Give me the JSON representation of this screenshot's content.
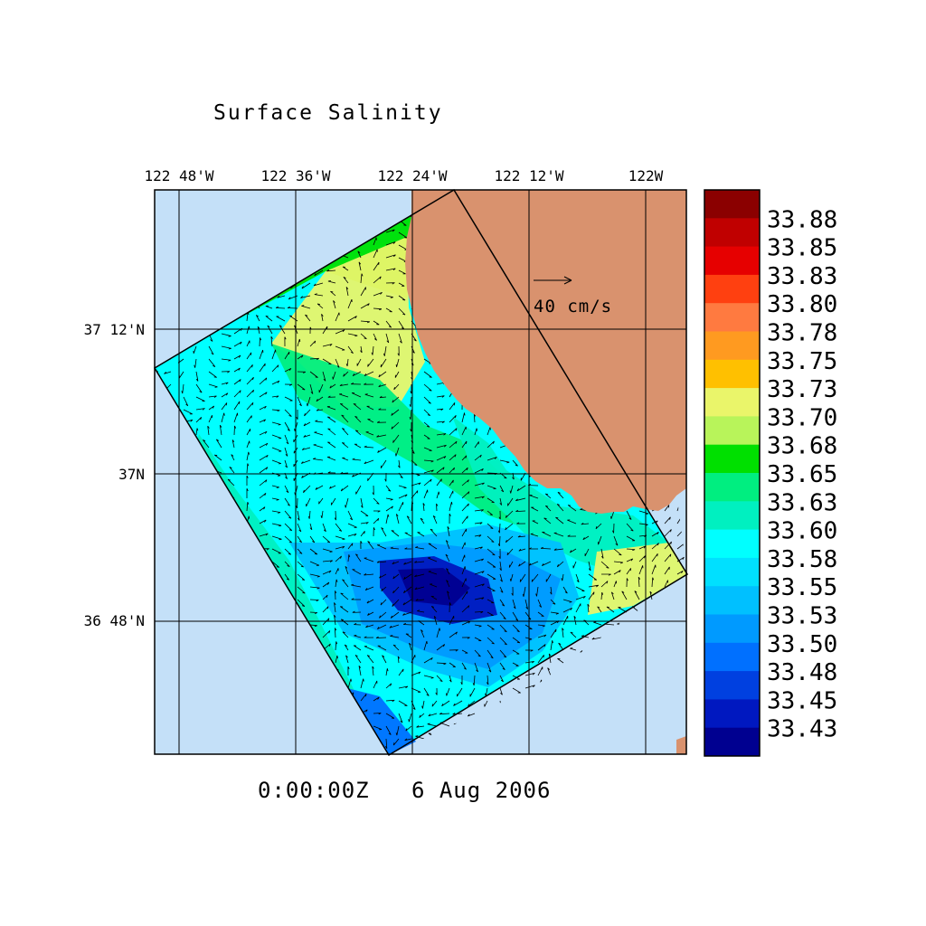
{
  "title": "Surface Salinity",
  "timestamp": "0:00:00Z   6 Aug 2006",
  "lon_labels": [
    "122 48'W",
    "122 36'W",
    "122 24'W",
    "122 12'W",
    "122W"
  ],
  "lat_labels": [
    "37 12'N",
    "37N",
    "36 48'N"
  ],
  "vector_reference": "40 cm/s",
  "colorbar": {
    "labels": [
      "33.88",
      "33.85",
      "33.83",
      "33.80",
      "33.78",
      "33.75",
      "33.73",
      "33.70",
      "33.68",
      "33.65",
      "33.63",
      "33.60",
      "33.58",
      "33.55",
      "33.53",
      "33.50",
      "33.48",
      "33.45",
      "33.43"
    ],
    "colors": [
      "#8b0000",
      "#c00000",
      "#e60000",
      "#ff4010",
      "#ff7a40",
      "#ff9a20",
      "#ffc000",
      "#eaf56a",
      "#b8f45a",
      "#00e000",
      "#00ee80",
      "#00f0c0",
      "#00ffff",
      "#00e0ff",
      "#00c0ff",
      "#009aff",
      "#0070ff",
      "#0040e0",
      "#0018c0",
      "#000090"
    ]
  },
  "colors": {
    "ocean_background": "#c4e0f8",
    "land": "#d9926e"
  }
}
